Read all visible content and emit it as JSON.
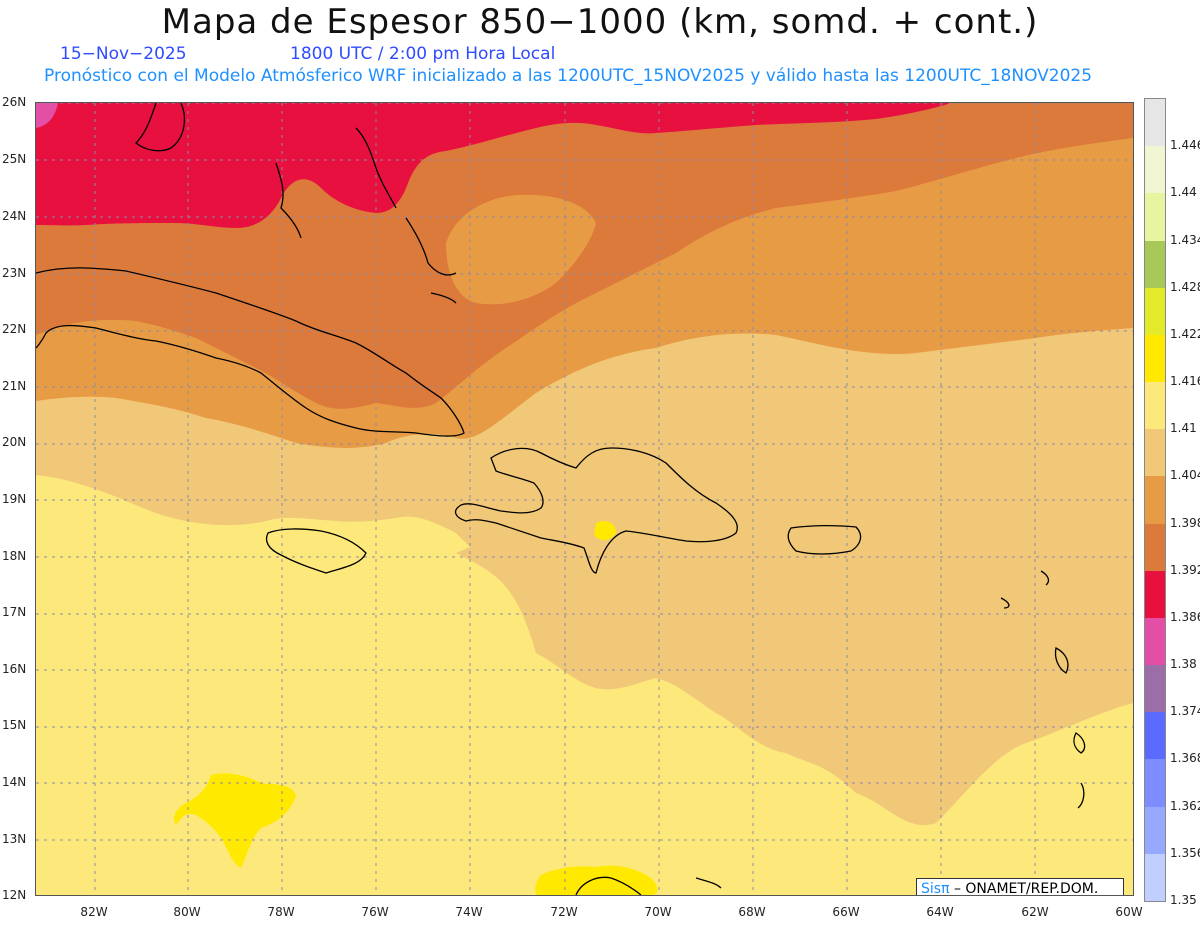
{
  "title": "Mapa de Espesor 850−1000 (km, somd. + cont.)",
  "date": "15−Nov−2025",
  "time": "1800 UTC / 2:00 pm Hora Local",
  "forecast": "Pronóstico con el Modelo Atmósferico WRF inicializado a las 1200UTC_15NOV2025 y válido hasta las  1200UTC_18NOV2025",
  "lat_labels": [
    "26N",
    "25N",
    "24N",
    "23N",
    "22N",
    "21N",
    "20N",
    "19N",
    "18N",
    "17N",
    "16N",
    "15N",
    "14N",
    "13N",
    "12N"
  ],
  "lon_labels": [
    "82W",
    "80W",
    "78W",
    "76W",
    "74W",
    "72W",
    "70W",
    "68W",
    "66W",
    "64W",
    "62W",
    "60W"
  ],
  "legend": {
    "labels": [
      "1.446",
      "1.44",
      "1.434",
      "1.428",
      "1.422",
      "1.416",
      "1.41",
      "1.404",
      "1.398",
      "1.392",
      "1.386",
      "1.38",
      "1.374",
      "1.368",
      "1.362",
      "1.356",
      "1.35"
    ],
    "colors": [
      "#e6e6e6",
      "#f2f5d2",
      "#e8f5a0",
      "#a8c957",
      "#e2ea2a",
      "#ffe900",
      "#fde97b",
      "#f0c878",
      "#e89b45",
      "#dc7a3b",
      "#e8103f",
      "#e34ea6",
      "#9b6ea8",
      "#5c6bff",
      "#7d8cff",
      "#96a9ff",
      "#c1cfff"
    ]
  },
  "logo": {
    "name": "Sisπ",
    "org": " – ONAMET/REP.DOM."
  }
}
